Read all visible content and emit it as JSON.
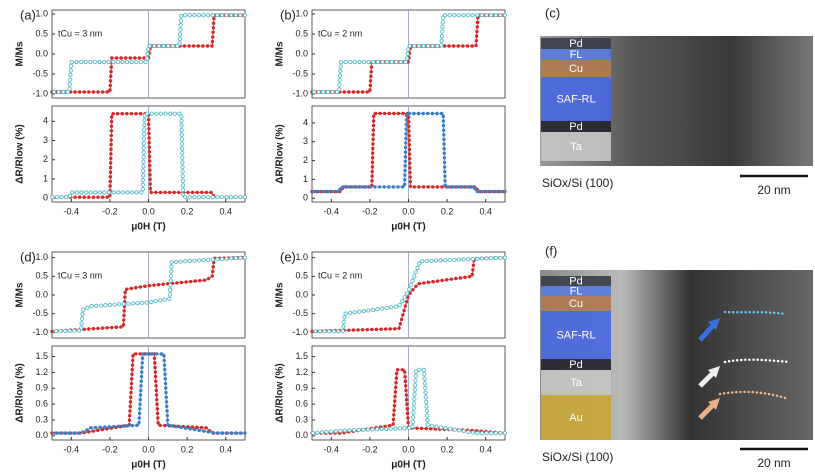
{
  "chart_data": [
    {
      "type": "line",
      "panel": "(a)",
      "annotation": "tCu = 3 nm",
      "ylabel": "M/Ms",
      "xlim": [
        -0.5,
        0.5
      ],
      "ylim": [
        -1.1,
        1.1
      ],
      "yticks": [
        {
          "value": -1,
          "label": "-1.0"
        },
        -0.5,
        {
          "value": 0,
          "label": "0.0"
        },
        0.5,
        {
          "value": 1,
          "label": "1.0"
        }
      ],
      "series": [
        {
          "color": "#d42a2a",
          "marker": "filled",
          "x": [
            -0.5,
            -0.2,
            -0.19,
            0.0,
            0.01,
            0.33,
            0.34,
            0.5
          ],
          "values": [
            -0.95,
            -0.95,
            -0.1,
            -0.1,
            0.2,
            0.2,
            0.97,
            0.97
          ]
        },
        {
          "color": "#5bbcc8",
          "marker": "open",
          "x": [
            0.5,
            0.17,
            0.16,
            0.0,
            -0.01,
            -0.4,
            -0.41,
            -0.5
          ],
          "values": [
            0.97,
            0.97,
            0.2,
            0.2,
            -0.2,
            -0.2,
            -0.95,
            -0.95
          ]
        }
      ]
    },
    {
      "type": "line",
      "ylabel": "ΔR/Rlow (%)",
      "xlabel": "μ0H (T)",
      "xlim": [
        -0.5,
        0.5
      ],
      "ylim": [
        -0.2,
        4.8
      ],
      "xticks": [
        -0.4,
        -0.2,
        {
          "value": 0,
          "label": "0.0"
        },
        0.2,
        0.4
      ],
      "yticks": [
        0,
        1,
        2,
        3,
        4
      ],
      "series": [
        {
          "color": "#d42a2a",
          "marker": "filled",
          "x": [
            -0.5,
            -0.2,
            -0.19,
            0.0,
            0.01,
            0.33,
            0.34,
            0.5
          ],
          "values": [
            0.05,
            0.05,
            4.4,
            4.4,
            0.3,
            0.3,
            0.05,
            0.05
          ]
        },
        {
          "color": "#5bbcc8",
          "marker": "open",
          "x": [
            0.5,
            0.18,
            0.17,
            -0.02,
            -0.03,
            -0.4,
            -0.41,
            -0.5
          ],
          "values": [
            0.05,
            0.05,
            4.4,
            4.4,
            0.3,
            0.3,
            0.05,
            0.05
          ]
        }
      ]
    },
    {
      "type": "line",
      "panel": "(b)",
      "annotation": "tCu = 2 nm",
      "ylabel": "M/Ms",
      "xlim": [
        -0.5,
        0.5
      ],
      "ylim": [
        -1.1,
        1.1
      ],
      "yticks": [
        {
          "value": -1,
          "label": "-1.0"
        },
        -0.5,
        {
          "value": 0,
          "label": "0.0"
        },
        0.5,
        {
          "value": 1,
          "label": "1.0"
        }
      ],
      "series": [
        {
          "color": "#d42a2a",
          "marker": "filled",
          "x": [
            -0.5,
            -0.2,
            -0.19,
            0.0,
            0.01,
            0.35,
            0.36,
            0.5
          ],
          "values": [
            -0.95,
            -0.95,
            -0.2,
            -0.2,
            0.2,
            0.2,
            0.97,
            0.97
          ]
        },
        {
          "color": "#5bbcc8",
          "marker": "open",
          "x": [
            0.5,
            0.18,
            0.17,
            0.0,
            -0.01,
            -0.35,
            -0.36,
            -0.5
          ],
          "values": [
            0.97,
            0.97,
            0.2,
            0.2,
            -0.2,
            -0.2,
            -0.95,
            -0.95
          ]
        }
      ]
    },
    {
      "type": "line",
      "ylabel": "ΔR/Rlow (%)",
      "xlabel": "μ0H (T)",
      "xlim": [
        -0.5,
        0.5
      ],
      "ylim": [
        -0.2,
        4.9
      ],
      "xticks": [
        -0.4,
        -0.2,
        {
          "value": 0,
          "label": "0.0"
        },
        0.2,
        0.4
      ],
      "yticks": [
        0,
        1,
        2,
        3,
        4
      ],
      "series": [
        {
          "color": "#d42a2a",
          "marker": "filled",
          "x": [
            -0.5,
            -0.35,
            -0.34,
            -0.19,
            -0.18,
            0.0,
            0.01,
            0.35,
            0.36,
            0.5
          ],
          "values": [
            0.35,
            0.35,
            0.6,
            0.6,
            4.5,
            4.5,
            0.6,
            0.6,
            0.35,
            0.35
          ]
        },
        {
          "color": "#3a80c8",
          "marker": "filled",
          "x": [
            0.5,
            0.35,
            0.34,
            0.19,
            0.18,
            -0.01,
            -0.02,
            -0.35,
            -0.36,
            -0.5
          ],
          "values": [
            0.35,
            0.35,
            0.6,
            0.6,
            4.5,
            4.5,
            0.6,
            0.6,
            0.35,
            0.35
          ]
        }
      ]
    },
    {
      "type": "line",
      "panel": "(d)",
      "annotation": "tCu = 3 nm",
      "ylabel": "M/Ms",
      "xlim": [
        -0.5,
        0.5
      ],
      "ylim": [
        -1.15,
        1.15
      ],
      "yticks": [
        {
          "value": -1,
          "label": "-1.0"
        },
        -0.5,
        {
          "value": 0,
          "label": "0.0"
        },
        0.5,
        {
          "value": 1,
          "label": "1.0"
        }
      ],
      "series": [
        {
          "color": "#d42a2a",
          "marker": "filled",
          "x": [
            -0.5,
            -0.13,
            -0.12,
            0.0,
            0.3,
            0.33,
            0.34,
            0.5
          ],
          "values": [
            -0.97,
            -0.85,
            0.15,
            0.25,
            0.4,
            0.5,
            0.98,
            1.0
          ]
        },
        {
          "color": "#5bbcc8",
          "marker": "open",
          "x": [
            0.5,
            0.12,
            0.11,
            0.0,
            -0.3,
            -0.34,
            -0.35,
            -0.5
          ],
          "values": [
            1.0,
            0.88,
            -0.1,
            -0.2,
            -0.3,
            -0.4,
            -0.95,
            -0.97
          ]
        }
      ]
    },
    {
      "type": "line",
      "ylabel": "ΔR/Rlow (%)",
      "xlabel": "μ0H (T)",
      "xlim": [
        -0.5,
        0.5
      ],
      "ylim": [
        -0.08,
        1.7
      ],
      "xticks": [
        -0.4,
        -0.2,
        {
          "value": 0,
          "label": "0.0"
        },
        0.2,
        0.4
      ],
      "yticks": [
        {
          "value": 0,
          "label": "0.0"
        },
        0.3,
        0.6,
        0.9,
        1.2,
        1.5
      ],
      "series": [
        {
          "color": "#d42a2a",
          "marker": "filled",
          "x": [
            -0.5,
            -0.35,
            -0.1,
            -0.08,
            0.03,
            0.05,
            0.3,
            0.33,
            0.5
          ],
          "values": [
            0.05,
            0.05,
            0.2,
            1.55,
            1.55,
            0.2,
            0.15,
            0.05,
            0.05
          ]
        },
        {
          "color": "#3a80c8",
          "marker": "filled",
          "x": [
            0.5,
            0.35,
            0.1,
            0.08,
            -0.03,
            -0.05,
            -0.3,
            -0.35,
            -0.5
          ],
          "values": [
            0.05,
            0.05,
            0.2,
            1.55,
            1.55,
            0.2,
            0.15,
            0.05,
            0.05
          ]
        }
      ]
    },
    {
      "type": "line",
      "panel": "(e)",
      "annotation": "tCu = 2 nm",
      "ylabel": "M/Ms",
      "xlim": [
        -0.5,
        0.5
      ],
      "ylim": [
        -1.15,
        1.15
      ],
      "yticks": [
        {
          "value": -1,
          "label": "-1.0"
        },
        -0.5,
        {
          "value": 0,
          "label": "0.0"
        },
        0.5,
        {
          "value": 1,
          "label": "1.0"
        }
      ],
      "series": [
        {
          "color": "#d42a2a",
          "marker": "filled",
          "x": [
            -0.5,
            -0.05,
            0.0,
            0.05,
            0.33,
            0.34,
            0.5
          ],
          "values": [
            -0.97,
            -0.9,
            0.0,
            0.3,
            0.5,
            0.97,
            1.0
          ]
        },
        {
          "color": "#5bbcc8",
          "marker": "open",
          "x": [
            0.5,
            0.06,
            0.0,
            -0.05,
            -0.33,
            -0.34,
            -0.5
          ],
          "values": [
            1.0,
            0.9,
            0.1,
            -0.3,
            -0.5,
            -0.97,
            -0.97
          ]
        }
      ]
    },
    {
      "type": "line",
      "ylabel": "ΔR/Rlow (%)",
      "xlabel": "μ0H (T)",
      "xlim": [
        -0.5,
        0.5
      ],
      "ylim": [
        -0.08,
        1.7
      ],
      "xticks": [
        -0.4,
        -0.2,
        {
          "value": 0,
          "label": "0.0"
        },
        0.2,
        0.4
      ],
      "yticks": [
        {
          "value": 0,
          "label": "0.0"
        },
        0.3,
        0.6,
        0.9,
        1.2,
        1.5
      ],
      "series": [
        {
          "color": "#d42a2a",
          "marker": "filled",
          "x": [
            -0.5,
            -0.35,
            -0.08,
            -0.06,
            -0.02,
            0.0,
            0.33,
            0.5
          ],
          "values": [
            0.05,
            0.05,
            0.2,
            1.25,
            1.25,
            0.15,
            0.1,
            0.05
          ]
        },
        {
          "color": "#5bbcc8",
          "marker": "open",
          "x": [
            0.5,
            0.35,
            0.1,
            0.08,
            0.04,
            0.02,
            -0.33,
            -0.5
          ],
          "values": [
            0.05,
            0.05,
            0.2,
            1.25,
            1.25,
            0.15,
            0.1,
            0.05
          ]
        }
      ]
    }
  ],
  "images": [
    {
      "label": "(c)",
      "substrate": "SiOx/Si (100)",
      "scale_bar": "20 nm",
      "layers": [
        {
          "name": "Pd",
          "color": "#3b3f4c"
        },
        {
          "name": "FL",
          "color": "#5a7cdc"
        },
        {
          "name": "Cu",
          "color": "#b07a54"
        },
        {
          "name": "SAF-RL",
          "color": "#4a68e0"
        },
        {
          "name": "Pd",
          "color": "#24242e"
        },
        {
          "name": "Ta",
          "color": "#c4c4c4"
        }
      ]
    },
    {
      "label": "(f)",
      "substrate": "SiOx/Si (100)",
      "scale_bar": "20 nm",
      "layers": [
        {
          "name": "Pd",
          "color": "#3b3f4c"
        },
        {
          "name": "FL",
          "color": "#5a7cdc"
        },
        {
          "name": "Cu",
          "color": "#b07a54"
        },
        {
          "name": "SAF-RL",
          "color": "#4a68e0"
        },
        {
          "name": "Pd",
          "color": "#24242e"
        },
        {
          "name": "Ta",
          "color": "#c4c4c4"
        },
        {
          "name": "Au",
          "color": "#c8a83a"
        }
      ]
    }
  ]
}
